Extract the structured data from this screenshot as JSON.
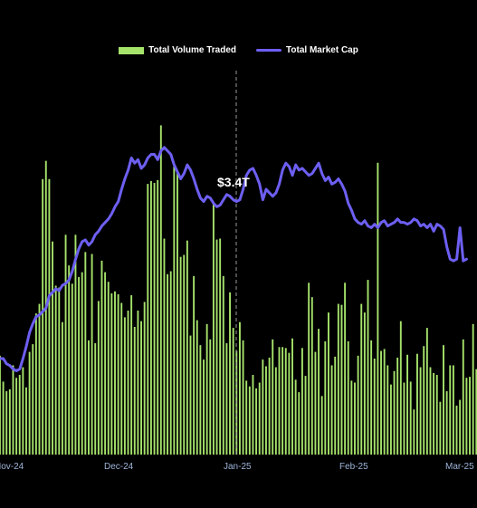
{
  "chart_data": {
    "type": "bar",
    "title": "",
    "legend": [
      {
        "name": "Total Volume Traded",
        "kind": "bar",
        "color": "#a6e36b"
      },
      {
        "name": "Total Market Cap",
        "kind": "line",
        "color": "#6d5ff2"
      }
    ],
    "legend_placement": "top-center",
    "annotation": {
      "label": "$3.4T",
      "at_index": 72
    },
    "x_tick_labels": [
      {
        "label": "Nov-24",
        "index": 0
      },
      {
        "label": "Dec-24",
        "index": 36
      },
      {
        "label": "Jan-25",
        "index": 72
      },
      {
        "label": "Feb-25",
        "index": 108
      },
      {
        "label": "Mar-25",
        "index": 142
      }
    ],
    "grid": false,
    "series": [
      {
        "name": "Total Volume Traded",
        "values": [
          103,
          76,
          66,
          68,
          93,
          80,
          83,
          91,
          70,
          107,
          115,
          147,
          157,
          287,
          306,
          287,
          222,
          176,
          174,
          138,
          229,
          197,
          178,
          229,
          185,
          190,
          211,
          119,
          209,
          116,
          160,
          202,
          190,
          180,
          168,
          170,
          167,
          158,
          143,
          150,
          166,
          133,
          150,
          139,
          159,
          282,
          285,
          283,
          286,
          343,
          225,
          188,
          191,
          300,
          295,
          206,
          208,
          223,
          124,
          186,
          140,
          114,
          99,
          136,
          120,
          261,
          224,
          225,
          186,
          116,
          169,
          132,
          108,
          138,
          119,
          77,
          71,
          83,
          69,
          75,
          99,
          92,
          101,
          120,
          91,
          112,
          112,
          111,
          106,
          121,
          78,
          65,
          111,
          82,
          179,
          164,
          107,
          131,
          61,
          118,
          148,
          93,
          102,
          157,
          156,
          179,
          118,
          77,
          75,
          103,
          157,
          148,
          182,
          119,
          100,
          304,
          108,
          110,
          93,
          73,
          87,
          101,
          139,
          75,
          104,
          76,
          47,
          105,
          91,
          113,
          132,
          91,
          85,
          83,
          55,
          114,
          66,
          93,
          93,
          51,
          57,
          120,
          80,
          81,
          136,
          89
        ],
        "ylim": [
          0,
          400
        ]
      },
      {
        "name": "Total Market Cap",
        "values": [
          2.55,
          2.55,
          2.52,
          2.51,
          2.49,
          2.48,
          2.49,
          2.55,
          2.62,
          2.7,
          2.75,
          2.79,
          2.8,
          2.82,
          2.84,
          2.91,
          2.93,
          2.95,
          2.94,
          2.97,
          2.98,
          3.0,
          3.05,
          3.12,
          3.18,
          3.22,
          3.23,
          3.2,
          3.22,
          3.26,
          3.28,
          3.31,
          3.33,
          3.35,
          3.38,
          3.42,
          3.45,
          3.52,
          3.58,
          3.63,
          3.7,
          3.67,
          3.69,
          3.64,
          3.66,
          3.7,
          3.72,
          3.72,
          3.69,
          3.74,
          3.76,
          3.74,
          3.72,
          3.66,
          3.62,
          3.58,
          3.61,
          3.66,
          3.63,
          3.58,
          3.52,
          3.47,
          3.45,
          3.48,
          3.47,
          3.44,
          3.42,
          3.43,
          3.46,
          3.49,
          3.48,
          3.46,
          3.45,
          3.46,
          3.52,
          3.6,
          3.63,
          3.64,
          3.6,
          3.55,
          3.46,
          3.52,
          3.5,
          3.48,
          3.5,
          3.55,
          3.63,
          3.67,
          3.65,
          3.6,
          3.66,
          3.63,
          3.64,
          3.62,
          3.6,
          3.61,
          3.64,
          3.67,
          3.61,
          3.57,
          3.59,
          3.55,
          3.56,
          3.58,
          3.55,
          3.51,
          3.44,
          3.4,
          3.35,
          3.33,
          3.32,
          3.34,
          3.31,
          3.3,
          3.32,
          3.3,
          3.33,
          3.34,
          3.31,
          3.32,
          3.33,
          3.35,
          3.33,
          3.33,
          3.32,
          3.33,
          3.35,
          3.34,
          3.31,
          3.32,
          3.3,
          3.32,
          3.28,
          3.32,
          3.31,
          3.29,
          3.19,
          3.12,
          3.11,
          3.12,
          3.3,
          3.11,
          3.12
        ],
        "ylim": [
          2.0,
          4.2
        ]
      }
    ]
  }
}
